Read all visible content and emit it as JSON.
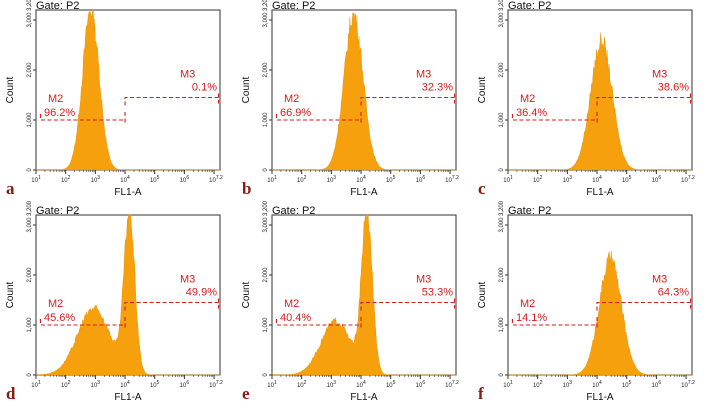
{
  "colors": {
    "fill": "#f5a00c",
    "marker": "#d81b1b",
    "label": "#8b1a0e"
  },
  "chart_data": [
    {
      "type": "area",
      "label": "a",
      "title": "Gate: P2",
      "xlabel": "FL1-A",
      "ylabel": "Count",
      "xscale": "log",
      "xlim": [
        10,
        15848932
      ],
      "ylim": [
        0,
        3200
      ],
      "xticklabels": [
        "10^1",
        "10^2",
        "10^3",
        "10^4",
        "10^5",
        "10^6",
        "10^7.2"
      ],
      "yticklabels": [
        "0",
        "1,000",
        "2,000",
        "3,000"
      ],
      "peaks": [
        {
          "log10_x": 2.85,
          "count": 3200,
          "width": 0.28
        }
      ],
      "markers": [
        {
          "name": "M2",
          "percent": "96.2%",
          "from_log10": 1.2,
          "to_log10": 4.0,
          "level": 1000
        },
        {
          "name": "M3",
          "percent": "0.1%",
          "from_log10": 4.0,
          "to_log10": 7.2,
          "level": 1450
        }
      ]
    },
    {
      "type": "area",
      "label": "b",
      "title": "Gate: P2",
      "xlabel": "FL1-A",
      "ylabel": "Count",
      "xscale": "log",
      "xlim": [
        10,
        15848932
      ],
      "ylim": [
        0,
        3200
      ],
      "xticklabels": [
        "10^1",
        "10^2",
        "10^3",
        "10^4",
        "10^5",
        "10^6",
        "10^7.2"
      ],
      "yticklabels": [
        "0",
        "1,000",
        "2,000",
        "3,000"
      ],
      "peaks": [
        {
          "log10_x": 3.75,
          "count": 3100,
          "width": 0.32
        }
      ],
      "markers": [
        {
          "name": "M2",
          "percent": "66.9%",
          "from_log10": 1.2,
          "to_log10": 4.0,
          "level": 1000
        },
        {
          "name": "M3",
          "percent": "32.3%",
          "from_log10": 4.0,
          "to_log10": 7.2,
          "level": 1450
        }
      ]
    },
    {
      "type": "area",
      "label": "c",
      "title": "Gate: P2",
      "xlabel": "FL1-A",
      "ylabel": "Count",
      "xscale": "log",
      "xlim": [
        10,
        15848932
      ],
      "ylim": [
        0,
        3200
      ],
      "xticklabels": [
        "10^1",
        "10^2",
        "10^3",
        "10^4",
        "10^5",
        "10^6",
        "10^7.2"
      ],
      "yticklabels": [
        "0",
        "1,000",
        "2,000",
        "3,000"
      ],
      "peaks": [
        {
          "log10_x": 4.15,
          "count": 2580,
          "width": 0.36
        }
      ],
      "markers": [
        {
          "name": "M2",
          "percent": "36.4%",
          "from_log10": 1.2,
          "to_log10": 4.0,
          "level": 1000
        },
        {
          "name": "M3",
          "percent": "38.6%",
          "from_log10": 4.0,
          "to_log10": 7.2,
          "level": 1450
        }
      ]
    },
    {
      "type": "area",
      "label": "d",
      "title": "Gate: P2",
      "xlabel": "FL1-A",
      "ylabel": "Count",
      "xscale": "log",
      "xlim": [
        10,
        15848932
      ],
      "ylim": [
        0,
        3200
      ],
      "xticklabels": [
        "10^1",
        "10^2",
        "10^3",
        "10^4",
        "10^5",
        "10^6",
        "10^7.2"
      ],
      "yticklabels": [
        "0",
        "1,000",
        "2,000",
        "3,000"
      ],
      "peaks": [
        {
          "log10_x": 2.95,
          "count": 1330,
          "width": 0.55
        },
        {
          "log10_x": 4.15,
          "count": 3200,
          "width": 0.18
        }
      ],
      "markers": [
        {
          "name": "M2",
          "percent": "45.6%",
          "from_log10": 1.2,
          "to_log10": 4.0,
          "level": 1000
        },
        {
          "name": "M3",
          "percent": "49.9%",
          "from_log10": 4.0,
          "to_log10": 7.2,
          "level": 1450
        }
      ]
    },
    {
      "type": "area",
      "label": "e",
      "title": "Gate: P2",
      "xlabel": "FL1-A",
      "ylabel": "Count",
      "xscale": "log",
      "xlim": [
        10,
        15848932
      ],
      "ylim": [
        0,
        3200
      ],
      "xticklabels": [
        "10^1",
        "10^2",
        "10^3",
        "10^4",
        "10^5",
        "10^6",
        "10^7.2"
      ],
      "yticklabels": [
        "0",
        "1,000",
        "2,000",
        "3,000"
      ],
      "peaks": [
        {
          "log10_x": 3.15,
          "count": 1080,
          "width": 0.5
        },
        {
          "log10_x": 4.2,
          "count": 3200,
          "width": 0.18
        }
      ],
      "markers": [
        {
          "name": "M2",
          "percent": "40.4%",
          "from_log10": 1.2,
          "to_log10": 4.0,
          "level": 1000
        },
        {
          "name": "M3",
          "percent": "53.3%",
          "from_log10": 4.0,
          "to_log10": 7.2,
          "level": 1450
        }
      ]
    },
    {
      "type": "area",
      "label": "f",
      "title": "Gate: P2",
      "xlabel": "FL1-A",
      "ylabel": "Count",
      "xscale": "log",
      "xlim": [
        10,
        15848932
      ],
      "ylim": [
        0,
        3200
      ],
      "xticklabels": [
        "10^1",
        "10^2",
        "10^3",
        "10^4",
        "10^5",
        "10^6",
        "10^7.2"
      ],
      "yticklabels": [
        "0",
        "1,000",
        "2,000",
        "3,000"
      ],
      "peaks": [
        {
          "log10_x": 4.45,
          "count": 2330,
          "width": 0.37
        }
      ],
      "markers": [
        {
          "name": "M2",
          "percent": "14.1%",
          "from_log10": 1.2,
          "to_log10": 4.0,
          "level": 1000
        },
        {
          "name": "M3",
          "percent": "64.3%",
          "from_log10": 4.0,
          "to_log10": 7.2,
          "level": 1450
        }
      ]
    }
  ]
}
